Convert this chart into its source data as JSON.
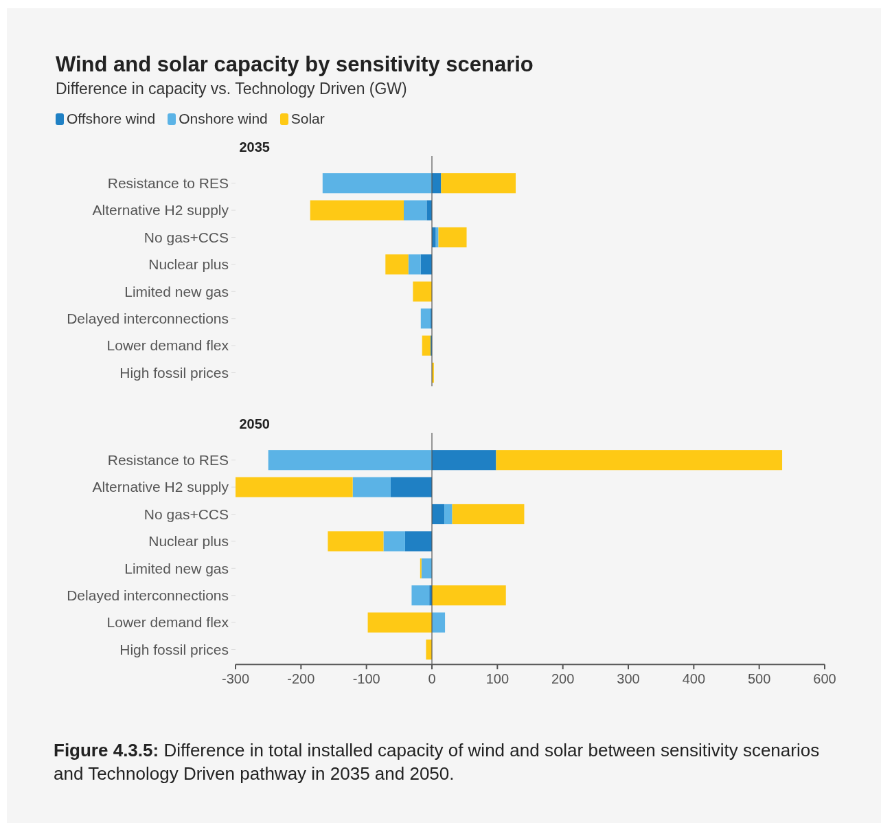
{
  "chart_data": [
    {
      "type": "bar",
      "orientation": "horizontal",
      "stacked": true,
      "title": "Wind and solar capacity by sensitivity scenario",
      "subtitle": "Difference in capacity vs. Technology Driven (GW)",
      "legend": "top left",
      "annotations": [
        "2035"
      ],
      "categories": [
        "Resistance to RES",
        "Alternative H2 supply",
        "No gas+CCS",
        "Nuclear plus",
        "Limited new gas",
        "Delayed interconnections",
        "Lower demand flex",
        "High fossil prices"
      ],
      "series": [
        {
          "name": "Offshore wind",
          "color": "#1f80c4",
          "values": [
            14,
            -8,
            6,
            -17,
            0,
            -2,
            -2,
            0
          ]
        },
        {
          "name": "Onshore wind",
          "color": "#5bb3e6",
          "values": [
            -167,
            -35,
            4,
            -19,
            0,
            -15,
            0,
            0
          ]
        },
        {
          "name": "Solar",
          "color": "#fec915",
          "values": [
            114,
            -143,
            43,
            -35,
            -29,
            0,
            -13,
            3
          ]
        }
      ],
      "xlim": [
        -300,
        600
      ],
      "tick_labels": "y"
    },
    {
      "type": "bar",
      "orientation": "horizontal",
      "stacked": true,
      "title": "2050",
      "annotations": [
        "Figure 4.3.5: Difference in total installed capacity of wind and solar between sensitivity scenarios and Technology Driven pathway in 2035 and 2050."
      ],
      "categories": [
        "Resistance to RES",
        "Alternative H2 supply",
        "No gas+CCS",
        "Nuclear plus",
        "Limited new gas",
        "Delayed interconnections",
        "Lower demand flex",
        "High fossil prices"
      ],
      "series": [
        {
          "color": "#1f80c4",
          "values": [
            98,
            -63,
            19,
            -41,
            0,
            -4,
            0,
            0
          ]
        },
        {
          "color": "#5bb3e6",
          "values": [
            -250,
            -58,
            12,
            -33,
            -16,
            -27,
            20,
            0
          ]
        },
        {
          "color": "#fec915",
          "values": [
            437,
            -179,
            110,
            -85,
            -2,
            113,
            -98,
            -9
          ]
        }
      ],
      "xlim": [
        -300,
        600
      ],
      "xticks": [
        -300,
        -200,
        -100,
        0,
        100,
        200,
        300,
        400,
        500,
        600
      ]
    }
  ]
}
